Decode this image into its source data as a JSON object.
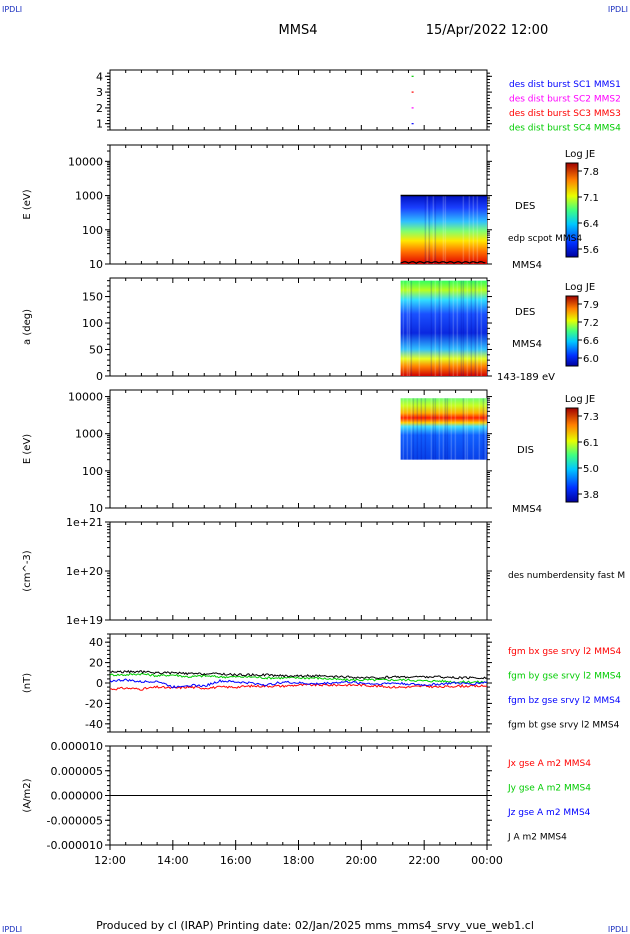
{
  "header": {
    "corner_tl": "IPDLI",
    "corner_tr": "IPDLI",
    "corner_bl": "IPDLI",
    "corner_br": "IPDLI",
    "spacecraft": "MMS4",
    "datetime": "15/Apr/2022 12:00"
  },
  "footer": {
    "text": "Produced by cl (IRAP)   Printing date: 02/Jan/2025   mms_mms4_srvy_vue_web1.cl"
  },
  "x_axis": {
    "ticks": [
      "12:00",
      "14:00",
      "16:00",
      "18:00",
      "20:00",
      "22:00",
      "00:00"
    ],
    "range_hours": [
      12,
      24
    ]
  },
  "colors": {
    "blue": "#0000ff",
    "magenta": "#ff00ff",
    "red": "#ff0000",
    "green": "#00cc00",
    "black": "#000000"
  },
  "chart_data": [
    {
      "type": "scatter",
      "panel": "burst",
      "ylim": [
        0.6,
        4.4
      ],
      "yticks": [
        "1",
        "2",
        "3",
        "4"
      ],
      "ytick_values": [
        1,
        2,
        3,
        4
      ],
      "series": [
        {
          "name": "des dist burst SC1 MMS1",
          "color": "#0000ff",
          "y": 1,
          "x": [
            21.6
          ]
        },
        {
          "name": "des dist burst SC2 MMS2",
          "color": "#ff00ff",
          "y": 2,
          "x": [
            21.6
          ]
        },
        {
          "name": "des dist burst SC3 MMS3",
          "color": "#ff0000",
          "y": 3,
          "x": [
            21.6
          ]
        },
        {
          "name": "des dist burst SC4 MMS4",
          "color": "#00cc00",
          "y": 4,
          "x": [
            21.6
          ]
        }
      ]
    },
    {
      "type": "heatmap",
      "panel": "des_energy",
      "ylabel": "E (eV)",
      "yscale": "log",
      "ylim": [
        10,
        30000
      ],
      "yticks": [
        "10",
        "100",
        "1000",
        "10000"
      ],
      "ytick_values": [
        10,
        100,
        1000,
        10000
      ],
      "data_x_range": [
        21.25,
        24
      ],
      "data_y_range": [
        10,
        1000
      ],
      "right_labels": [
        "DES",
        "edp scpot MMS4",
        "MMS4"
      ],
      "colorbar": {
        "title": "Log JE",
        "ticks": [
          "7.8",
          "7.1",
          "6.4",
          "5.6"
        ]
      }
    },
    {
      "type": "heatmap",
      "panel": "des_pitch",
      "ylabel": "a (deg)",
      "ylim": [
        0,
        185
      ],
      "yticks": [
        "0",
        "50",
        "100",
        "150"
      ],
      "ytick_values": [
        0,
        50,
        100,
        150
      ],
      "data_x_range": [
        21.25,
        24
      ],
      "data_y_range": [
        0,
        180
      ],
      "right_labels": [
        "DES",
        "MMS4",
        "143-189 eV"
      ],
      "colorbar": {
        "title": "Log JE",
        "ticks": [
          "7.9",
          "7.2",
          "6.6",
          "6.0"
        ]
      }
    },
    {
      "type": "heatmap",
      "panel": "dis_energy",
      "ylabel": "E (eV)",
      "yscale": "log",
      "ylim": [
        10,
        15000
      ],
      "yticks": [
        "10",
        "100",
        "1000",
        "10000"
      ],
      "ytick_values": [
        10,
        100,
        1000,
        10000
      ],
      "data_x_range": [
        21.25,
        24
      ],
      "data_y_range": [
        200,
        9000
      ],
      "right_labels": [
        "DIS",
        "MMS4"
      ],
      "colorbar": {
        "title": "Log JE",
        "ticks": [
          "7.3",
          "6.1",
          "5.0",
          "3.8"
        ]
      }
    },
    {
      "type": "line",
      "panel": "density",
      "ylabel": "(cm^-3)",
      "yscale": "log",
      "ylim": [
        1e+19,
        1e+21
      ],
      "yticks": [
        "1e+19",
        "1e+20",
        "1e+21"
      ],
      "ytick_values": [
        1e+19,
        1e+20,
        1e+21
      ],
      "series": [
        {
          "name": "des numberdensity fast M",
          "color": "#000000",
          "x": [],
          "y": []
        }
      ]
    },
    {
      "type": "line",
      "panel": "fgm",
      "ylabel": "(nT)",
      "ylim": [
        -48,
        48
      ],
      "yticks": [
        "-40",
        "-20",
        "0",
        "20",
        "40"
      ],
      "ytick_values": [
        -40,
        -20,
        0,
        20,
        40
      ],
      "x": [
        12,
        12.5,
        13,
        13.5,
        14,
        14.5,
        15,
        15.5,
        16,
        16.5,
        17,
        17.5,
        18,
        18.5,
        19,
        19.5,
        20,
        20.5,
        21,
        21.5,
        22,
        22.5,
        23,
        23.5,
        24
      ],
      "series": [
        {
          "name": "fgm bx gse srvy l2 MMS4",
          "color": "#ff0000",
          "y": [
            -6,
            -5,
            -6,
            -4,
            -5,
            -4,
            -5,
            -4,
            -4,
            -3,
            -3,
            -3,
            -2,
            -2,
            -2,
            -2,
            -2,
            -3,
            -4,
            -4,
            -3,
            -4,
            -3,
            -3,
            -3
          ]
        },
        {
          "name": "fgm by gse srvy l2 MMS4",
          "color": "#00cc00",
          "y": [
            8,
            8,
            9,
            7,
            8,
            6,
            7,
            6,
            6,
            6,
            5,
            5,
            5,
            5,
            4,
            3,
            3,
            3,
            3,
            3,
            2,
            2,
            1,
            1,
            1
          ]
        },
        {
          "name": "fgm bz gse srvy l2 MMS4",
          "color": "#0000ff",
          "y": [
            2,
            3,
            1,
            2,
            -4,
            -2,
            -3,
            2,
            1,
            0,
            -2,
            1,
            0,
            -1,
            0,
            1,
            0,
            -1,
            0,
            -1,
            -2,
            -1,
            0,
            -1,
            1
          ]
        },
        {
          "name": "fgm bt gse srvy l2 MMS4",
          "color": "#000000",
          "y": [
            11,
            11,
            11,
            10,
            10,
            9,
            9,
            9,
            8,
            8,
            8,
            7,
            7,
            7,
            6,
            6,
            5,
            5,
            6,
            6,
            6,
            6,
            5,
            5,
            5
          ]
        }
      ]
    },
    {
      "type": "line",
      "panel": "current",
      "ylabel": "(A/m2)",
      "ylim": [
        -1e-05,
        1e-05
      ],
      "yticks": [
        "-0.000010",
        "-0.000005",
        "0.000000",
        "0.000005",
        "0.000010"
      ],
      "ytick_values": [
        -1e-05,
        -5e-06,
        0,
        5e-06,
        1e-05
      ],
      "x": [
        12,
        24
      ],
      "series": [
        {
          "name": "Jx gse A m2 MMS4",
          "color": "#ff0000",
          "y": [
            0,
            0
          ]
        },
        {
          "name": "Jy gse A m2 MMS4",
          "color": "#00cc00",
          "y": [
            0,
            0
          ]
        },
        {
          "name": "Jz gse A m2 MMS4",
          "color": "#0000ff",
          "y": [
            0,
            0
          ]
        },
        {
          "name": "J A m2 MMS4",
          "color": "#000000",
          "y": [
            0,
            0
          ]
        }
      ]
    }
  ]
}
